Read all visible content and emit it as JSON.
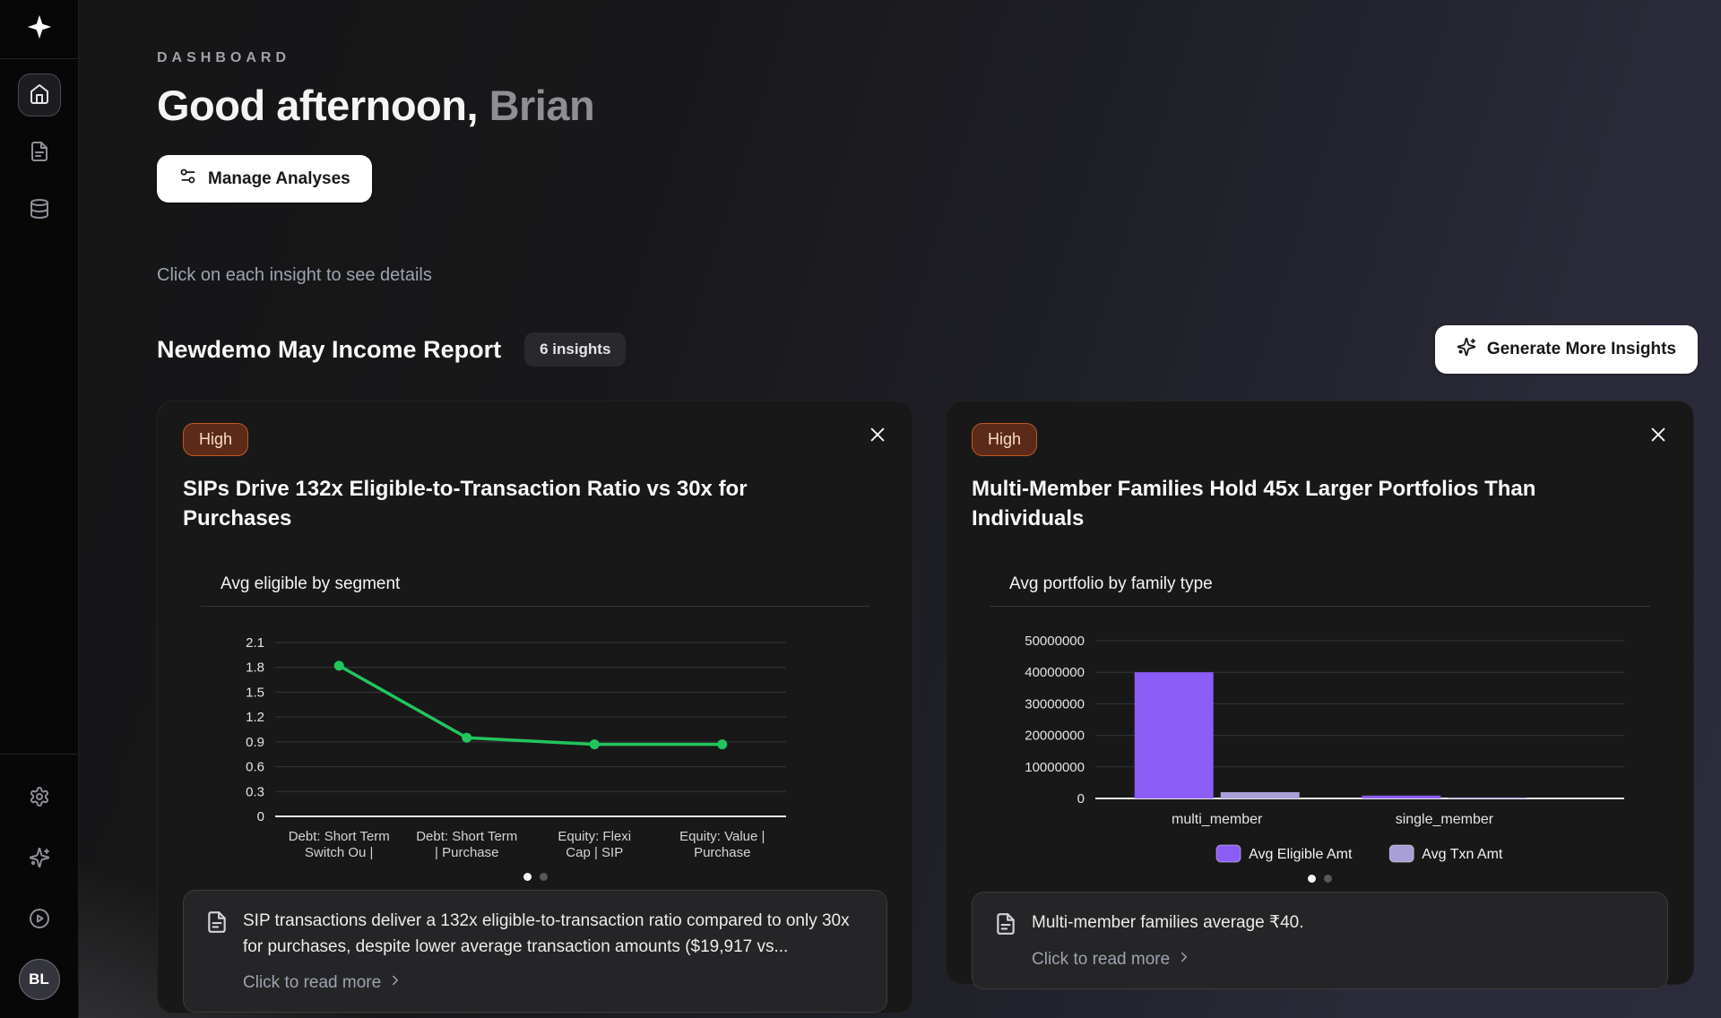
{
  "sidebar": {
    "avatar_initials": "BL",
    "icons": [
      "sparkle-logo",
      "home",
      "file-document",
      "database",
      "settings-gear",
      "sparkles",
      "play-circle"
    ]
  },
  "header": {
    "eyebrow": "DASHBOARD",
    "greeting_prefix": "Good afternoon,",
    "greeting_name": "Brian",
    "manage_analyses_label": "Manage Analyses"
  },
  "toolbar": {
    "hint": "Click on each insight to see details",
    "report_title": "Newdemo May Income Report",
    "insights_count_badge": "6 insights",
    "generate_more_label": "Generate More Insights"
  },
  "cards": [
    {
      "priority_badge": "High",
      "title": "SIPs Drive 132x Eligible-to-Transaction Ratio vs 30x for Purchases",
      "summary": "SIP transactions deliver a 132x eligible-to-transaction ratio compared to only 30x for purchases, despite lower average transaction amounts ($19,917 vs...",
      "read_more_label": "Click to read more"
    },
    {
      "priority_badge": "High",
      "title": "Multi-Member Families Hold 45x Larger Portfolios Than Individuals",
      "summary": "Multi-member families average ₹40.",
      "read_more_label": "Click to read more"
    }
  ],
  "chart_data": [
    {
      "type": "line",
      "title": "Avg eligible by segment",
      "categories": [
        "Debt: Short Term Switch Ou |",
        "Debt: Short Term | Purchase",
        "Equity: Flexi Cap | SIP",
        "Equity: Value | Purchase"
      ],
      "categories_lines": [
        [
          "Debt: Short Term",
          "Switch Ou |"
        ],
        [
          "Debt: Short Term",
          "| Purchase"
        ],
        [
          "Equity: Flexi",
          "Cap | SIP"
        ],
        [
          "Equity: Value |",
          "Purchase"
        ]
      ],
      "values": [
        1.82,
        0.95,
        0.87,
        0.87
      ],
      "ylim": [
        0,
        2.1
      ],
      "yticks": [
        0,
        0.3,
        0.6,
        0.9,
        1.2,
        1.5,
        1.8,
        2.1
      ],
      "grid": true,
      "line_color": "#22c55e",
      "xlabel": "",
      "ylabel": ""
    },
    {
      "type": "bar",
      "title": "Avg portfolio by family type",
      "categories": [
        "multi_member",
        "single_member"
      ],
      "series": [
        {
          "name": "Avg Eligible Amt",
          "color": "#8b5cf6",
          "values": [
            40000000,
            900000
          ]
        },
        {
          "name": "Avg Txn Amt",
          "color": "#a89fd8",
          "values": [
            2000000,
            300000
          ]
        }
      ],
      "ylim": [
        0,
        50000000
      ],
      "yticks": [
        0,
        10000000,
        20000000,
        30000000,
        40000000,
        50000000
      ],
      "grid": true,
      "legend_position": "bottom"
    }
  ],
  "colors": {
    "accent_green": "#22c55e",
    "accent_purple": "#8b5cf6",
    "accent_lavender": "#a89fd8",
    "high_badge_bg": "#5b2a18",
    "high_badge_border": "#c05a21",
    "high_badge_text": "#f8dcc8",
    "card_bg": "#181818",
    "footer_panel_bg": "#252527",
    "grid_line": "#33343c",
    "axis_line": "#e8e8ea"
  }
}
